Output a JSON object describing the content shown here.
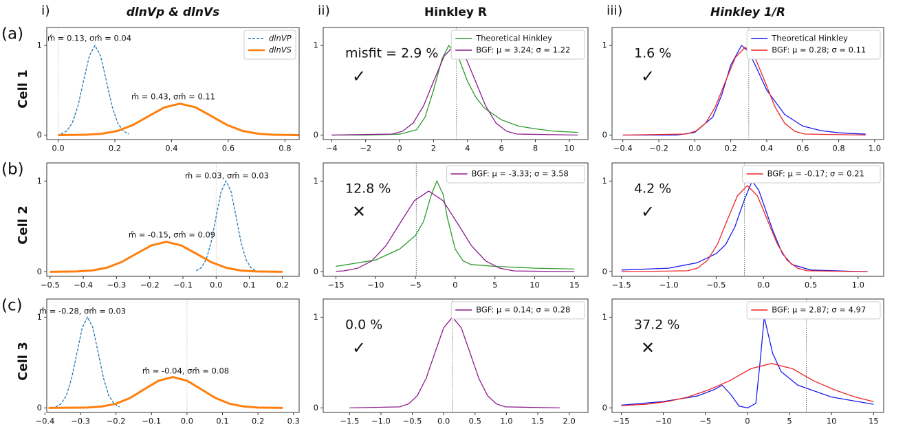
{
  "columns": [
    {
      "number": "i)",
      "title": "dlnVp & dlnVs"
    },
    {
      "number": "ii)",
      "title": "Hinkley R"
    },
    {
      "number": "iii)",
      "title": "Hinkley 1/R"
    }
  ],
  "rows": [
    {
      "letter": "(a)",
      "label": "Cell 1"
    },
    {
      "letter": "(b)",
      "label": "Cell 2"
    },
    {
      "letter": "(c)",
      "label": "Cell 3"
    }
  ],
  "chart_data": [
    {
      "type": "line",
      "xlim": [
        -0.04,
        0.85
      ],
      "ylim": [
        -0.05,
        1.2
      ],
      "xticks": [
        {
          "value": 0,
          "label": "0.0"
        },
        0.2,
        0.4,
        0.6,
        0.8
      ],
      "yticks": [
        0,
        1
      ],
      "legend": "upper right",
      "vline": 0,
      "annotations": [
        "m̂ = 0.13, σm̂ = 0.04",
        "m̂ = 0.43, σm̂ = 0.11"
      ],
      "series": [
        {
          "name": "dlnVP",
          "color": "#1f77b4",
          "dashed": true,
          "x": [
            0.01,
            0.03,
            0.05,
            0.07,
            0.09,
            0.11,
            0.13,
            0.15,
            0.17,
            0.19,
            0.21,
            0.23,
            0.25
          ],
          "values": [
            0.011,
            0.044,
            0.135,
            0.325,
            0.607,
            0.883,
            1,
            0.883,
            0.607,
            0.325,
            0.135,
            0.044,
            0.011
          ]
        },
        {
          "name": "dlnVS",
          "color": "#ff7f0e",
          "dashed": false,
          "x": [
            0,
            0.1,
            0.155,
            0.21,
            0.265,
            0.32,
            0.375,
            0.43,
            0.485,
            0.54,
            0.595,
            0.65,
            0.705,
            0.76,
            0.85
          ],
          "values": [
            0,
            0.004,
            0.015,
            0.047,
            0.114,
            0.212,
            0.309,
            0.35,
            0.309,
            0.212,
            0.114,
            0.047,
            0.015,
            0.004,
            0
          ]
        }
      ]
    },
    {
      "type": "line",
      "xlim": [
        -4.5,
        11.1
      ],
      "ylim": [
        -0.05,
        1.2
      ],
      "xticks": [
        {
          "value": -4,
          "label": "−4"
        },
        {
          "value": -2,
          "label": "−2"
        },
        0,
        2,
        4,
        6,
        8,
        10
      ],
      "yticks": [
        0,
        1
      ],
      "legend": "upper right",
      "vline": 3.35,
      "misfit": {
        "text": "misfit = 2.9 %",
        "symbol": "✓",
        "color": "#229922"
      },
      "series": [
        {
          "name": "Theoretical Hinkley",
          "color": "#2a9a2a",
          "dashed": false,
          "x": [
            -4,
            -2,
            0,
            1,
            1.5,
            2,
            2.5,
            2.9,
            3.5,
            4,
            4.5,
            5,
            6,
            7,
            8,
            9,
            10.5
          ],
          "values": [
            0,
            0,
            0.01,
            0.06,
            0.2,
            0.5,
            0.85,
            1,
            0.85,
            0.6,
            0.42,
            0.3,
            0.17,
            0.1,
            0.07,
            0.045,
            0.03
          ]
        },
        {
          "name": "BGF: μ = 3.24; σ = 1.22",
          "color": "#8b1a8b",
          "dashed": false,
          "x": [
            -4,
            -0.42,
            0.19,
            0.8,
            1.41,
            2.02,
            2.63,
            3.24,
            3.85,
            4.46,
            5.07,
            5.68,
            6.29,
            6.9,
            10.5
          ],
          "values": [
            0,
            0.011,
            0.044,
            0.135,
            0.325,
            0.607,
            0.883,
            1,
            0.883,
            0.607,
            0.325,
            0.135,
            0.044,
            0.011,
            0
          ]
        }
      ]
    },
    {
      "type": "line",
      "xlim": [
        -0.46,
        1.05
      ],
      "ylim": [
        -0.05,
        1.2
      ],
      "xticks": [
        {
          "value": -0.4,
          "label": "−0.4"
        },
        {
          "value": -0.2,
          "label": "−0.2"
        },
        {
          "value": 0,
          "label": "0.0"
        },
        0.2,
        0.4,
        0.6,
        0.8,
        {
          "value": 1,
          "label": "1.0"
        }
      ],
      "yticks": [
        0,
        1
      ],
      "legend": "upper right",
      "vline": 0.3,
      "misfit": {
        "text": "1.6 %",
        "symbol": "✓",
        "color": "#229922"
      },
      "series": [
        {
          "name": "Theoretical Hinkley",
          "color": "#1a1aee",
          "dashed": false,
          "x": [
            -0.4,
            -0.1,
            0,
            0.1,
            0.15,
            0.2,
            0.26,
            0.3,
            0.35,
            0.4,
            0.5,
            0.6,
            0.7,
            0.8,
            0.95
          ],
          "values": [
            0,
            0,
            0.03,
            0.2,
            0.45,
            0.78,
            1,
            0.93,
            0.72,
            0.5,
            0.23,
            0.1,
            0.05,
            0.025,
            0.01
          ]
        },
        {
          "name": "BGF: μ = 0.28; σ = 0.11",
          "color": "#ee2222",
          "dashed": false,
          "x": [
            -0.4,
            -0.05,
            0.005,
            0.06,
            0.115,
            0.17,
            0.225,
            0.28,
            0.335,
            0.39,
            0.445,
            0.5,
            0.555,
            0.61,
            0.95
          ],
          "values": [
            0,
            0.011,
            0.043,
            0.132,
            0.318,
            0.595,
            0.865,
            0.98,
            0.865,
            0.595,
            0.318,
            0.132,
            0.043,
            0.011,
            0
          ]
        }
      ]
    },
    {
      "type": "line",
      "xlim": [
        -0.51,
        0.25
      ],
      "ylim": [
        -0.05,
        1.2
      ],
      "xticks": [
        {
          "value": -0.5,
          "label": "−0.5"
        },
        {
          "value": -0.4,
          "label": "−0.4"
        },
        {
          "value": -0.3,
          "label": "−0.3"
        },
        {
          "value": -0.2,
          "label": "−0.2"
        },
        {
          "value": -0.1,
          "label": "−0.1"
        },
        {
          "value": 0,
          "label": "0.0"
        },
        0.1,
        0.2
      ],
      "yticks": [
        0,
        1
      ],
      "legend": null,
      "vline": 0,
      "annotations": [
        "m̂ = 0.03, σm̂ = 0.03",
        "m̂ = -0.15, σm̂ = 0.09"
      ],
      "series": [
        {
          "name": "dlnVP",
          "color": "#1f77b4",
          "dashed": true,
          "x": [
            -0.06,
            -0.045,
            -0.03,
            -0.015,
            0,
            0.015,
            0.03,
            0.045,
            0.06,
            0.075,
            0.09,
            0.105,
            0.12
          ],
          "values": [
            0.011,
            0.044,
            0.135,
            0.325,
            0.607,
            0.883,
            1,
            0.883,
            0.607,
            0.325,
            0.135,
            0.044,
            0.011
          ]
        },
        {
          "name": "dlnVS",
          "color": "#ff7f0e",
          "dashed": false,
          "x": [
            -0.5,
            -0.42,
            -0.375,
            -0.33,
            -0.285,
            -0.24,
            -0.195,
            -0.15,
            -0.105,
            -0.06,
            -0.015,
            0.03,
            0.075,
            0.12,
            0.2
          ],
          "values": [
            0,
            0.004,
            0.014,
            0.045,
            0.107,
            0.2,
            0.291,
            0.33,
            0.291,
            0.2,
            0.107,
            0.045,
            0.014,
            0.004,
            0
          ]
        }
      ]
    },
    {
      "type": "line",
      "xlim": [
        -16.6,
        16.7
      ],
      "ylim": [
        -0.05,
        1.2
      ],
      "xticks": [
        {
          "value": -15,
          "label": "−15"
        },
        {
          "value": -10,
          "label": "−10"
        },
        {
          "value": -5,
          "label": "−5"
        },
        0,
        5,
        10,
        15
      ],
      "yticks": [
        0,
        1
      ],
      "legend": "upper right",
      "vline": -4.9,
      "misfit": {
        "text": "12.8 %",
        "symbol": "✕",
        "color": "#e0201b"
      },
      "series": [
        {
          "name": null,
          "color": "#2a9a2a",
          "dashed": false,
          "x": [
            -15,
            -10,
            -7,
            -5,
            -4,
            -3,
            -2.3,
            -1.5,
            -1,
            0,
            1,
            2,
            5,
            10,
            15
          ],
          "values": [
            0.06,
            0.13,
            0.25,
            0.4,
            0.55,
            0.85,
            1,
            0.85,
            0.6,
            0.25,
            0.12,
            0.08,
            0.06,
            0.04,
            0.03
          ]
        },
        {
          "name": "BGF: μ = -3.33; σ = 3.58",
          "color": "#8b1a8b",
          "dashed": false,
          "x": [
            -15,
            -14.07,
            -12.28,
            -10.49,
            -8.7,
            -6.91,
            -5.12,
            -3.33,
            -1.54,
            0.25,
            2.04,
            3.83,
            5.62,
            7.41,
            15
          ],
          "values": [
            0.005,
            0.01,
            0.039,
            0.12,
            0.289,
            0.54,
            0.785,
            0.89,
            0.785,
            0.54,
            0.289,
            0.12,
            0.039,
            0.01,
            0
          ]
        }
      ]
    },
    {
      "type": "line",
      "xlim": [
        -1.6,
        1.27
      ],
      "ylim": [
        -0.05,
        1.2
      ],
      "xticks": [
        {
          "value": -1.5,
          "label": "−1.5"
        },
        {
          "value": -1,
          "label": "−1.0"
        },
        {
          "value": -0.5,
          "label": "−0.5"
        },
        {
          "value": 0,
          "label": "0.0"
        },
        0.5,
        {
          "value": 1,
          "label": "1.0"
        }
      ],
      "yticks": [
        0,
        1
      ],
      "legend": "upper right",
      "vline": -0.2,
      "misfit": {
        "text": "4.2 %",
        "symbol": "✓",
        "color": "#229922"
      },
      "series": [
        {
          "name": null,
          "color": "#1a1aee",
          "dashed": false,
          "x": [
            -1.5,
            -1,
            -0.7,
            -0.5,
            -0.4,
            -0.3,
            -0.2,
            -0.12,
            -0.05,
            0,
            0.1,
            0.2,
            0.3,
            0.5,
            1.1
          ],
          "values": [
            0.02,
            0.04,
            0.1,
            0.2,
            0.3,
            0.5,
            0.8,
            1,
            0.9,
            0.75,
            0.45,
            0.2,
            0.08,
            0.02,
            0
          ]
        },
        {
          "name": "BGF: μ = -0.17; σ = 0.21",
          "color": "#ee2222",
          "dashed": false,
          "x": [
            -1.5,
            -0.8,
            -0.695,
            -0.59,
            -0.485,
            -0.38,
            -0.275,
            -0.17,
            -0.065,
            0.04,
            0.145,
            0.25,
            0.355,
            0.46,
            1.1
          ],
          "values": [
            0,
            0.011,
            0.042,
            0.128,
            0.308,
            0.576,
            0.838,
            0.95,
            0.838,
            0.576,
            0.308,
            0.128,
            0.042,
            0.011,
            0
          ]
        }
      ]
    },
    {
      "type": "line",
      "xlim": [
        -0.395,
        0.316
      ],
      "ylim": [
        -0.05,
        1.2
      ],
      "xticks": [
        {
          "value": -0.4,
          "label": "−0.4"
        },
        {
          "value": -0.3,
          "label": "−0.3"
        },
        {
          "value": -0.2,
          "label": "−0.2"
        },
        {
          "value": -0.1,
          "label": "−0.1"
        },
        {
          "value": 0,
          "label": "0.0"
        },
        0.1,
        0.2,
        0.3
      ],
      "yticks": [
        0,
        1
      ],
      "legend": null,
      "vline": 0,
      "annotations": [
        "m̂ = -0.28, σm̂ = 0.03",
        "m̂ = -0.04, σm̂ = 0.08"
      ],
      "series": [
        {
          "name": "dlnVP",
          "color": "#1f77b4",
          "dashed": true,
          "x": [
            -0.37,
            -0.355,
            -0.34,
            -0.325,
            -0.31,
            -0.295,
            -0.28,
            -0.265,
            -0.25,
            -0.235,
            -0.22,
            -0.205,
            -0.19
          ],
          "values": [
            0.011,
            0.044,
            0.135,
            0.325,
            0.607,
            0.883,
            1,
            0.883,
            0.607,
            0.325,
            0.135,
            0.044,
            0.011
          ]
        },
        {
          "name": "dlnVS",
          "color": "#ff7f0e",
          "dashed": false,
          "x": [
            -0.39,
            -0.28,
            -0.24,
            -0.2,
            -0.16,
            -0.12,
            -0.08,
            -0.04,
            0,
            0.04,
            0.08,
            0.12,
            0.16,
            0.2,
            0.27
          ],
          "values": [
            0,
            0.004,
            0.015,
            0.046,
            0.11,
            0.206,
            0.3,
            0.34,
            0.3,
            0.206,
            0.11,
            0.046,
            0.015,
            0.004,
            0
          ]
        }
      ]
    },
    {
      "type": "line",
      "xlim": [
        -1.92,
        2.3
      ],
      "ylim": [
        -0.05,
        1.2
      ],
      "xticks": [
        {
          "value": -1.5,
          "label": "−1.5"
        },
        {
          "value": -1,
          "label": "−1.0"
        },
        {
          "value": -0.5,
          "label": "−0.5"
        },
        {
          "value": 0,
          "label": "0.0"
        },
        0.5,
        {
          "value": 1,
          "label": "1.0"
        },
        1.5,
        {
          "value": 2,
          "label": "2.0"
        }
      ],
      "yticks": [
        0,
        1
      ],
      "legend": "upper right",
      "vline": 0.14,
      "misfit": {
        "text": "0.0 %",
        "symbol": "✓",
        "color": "#229922"
      },
      "series": [
        {
          "name": "BGF: μ = 0.14; σ = 0.28",
          "color": "#8b1a8b",
          "dashed": false,
          "x": [
            -1.5,
            -0.7,
            -0.56,
            -0.42,
            -0.28,
            -0.14,
            0,
            0.14,
            0.28,
            0.42,
            0.56,
            0.7,
            0.84,
            0.98,
            1.85
          ],
          "values": [
            0,
            0.011,
            0.044,
            0.135,
            0.325,
            0.607,
            0.883,
            1,
            0.883,
            0.607,
            0.325,
            0.135,
            0.044,
            0.011,
            0
          ]
        }
      ]
    },
    {
      "type": "line",
      "xlim": [
        -16.1,
        16.2
      ],
      "ylim": [
        -0.05,
        1.2
      ],
      "xticks": [
        {
          "value": -15,
          "label": "−15"
        },
        {
          "value": -10,
          "label": "−10"
        },
        {
          "value": -5,
          "label": "−5"
        },
        0,
        5,
        10,
        15
      ],
      "yticks": [
        0,
        1
      ],
      "legend": "upper right",
      "vline": 7,
      "misfit": {
        "text": "37.2 %",
        "symbol": "✕",
        "color": "#e0201b"
      },
      "series": [
        {
          "name": null,
          "color": "#1a1aee",
          "dashed": false,
          "x": [
            -15,
            -10,
            -6,
            -4,
            -3,
            -2,
            -1,
            0,
            1,
            1.5,
            2,
            3,
            4,
            6,
            10,
            15
          ],
          "values": [
            0.03,
            0.07,
            0.13,
            0.2,
            0.25,
            0.15,
            0.02,
            0,
            0.05,
            0.5,
            1,
            0.6,
            0.4,
            0.25,
            0.12,
            0.04
          ]
        },
        {
          "name": "BGF: μ = 2.87; σ = 4.97",
          "color": "#ee2222",
          "dashed": false,
          "x": [
            -15,
            -12.04,
            -9.56,
            -7.07,
            -4.59,
            -2.1,
            0.39,
            2.87,
            5.36,
            7.84,
            10.33,
            12.81,
            15
          ],
          "values": [
            0.025,
            0.04,
            0.07,
            0.12,
            0.2,
            0.3,
            0.432,
            0.49,
            0.432,
            0.3,
            0.2,
            0.12,
            0.07
          ]
        }
      ]
    }
  ]
}
